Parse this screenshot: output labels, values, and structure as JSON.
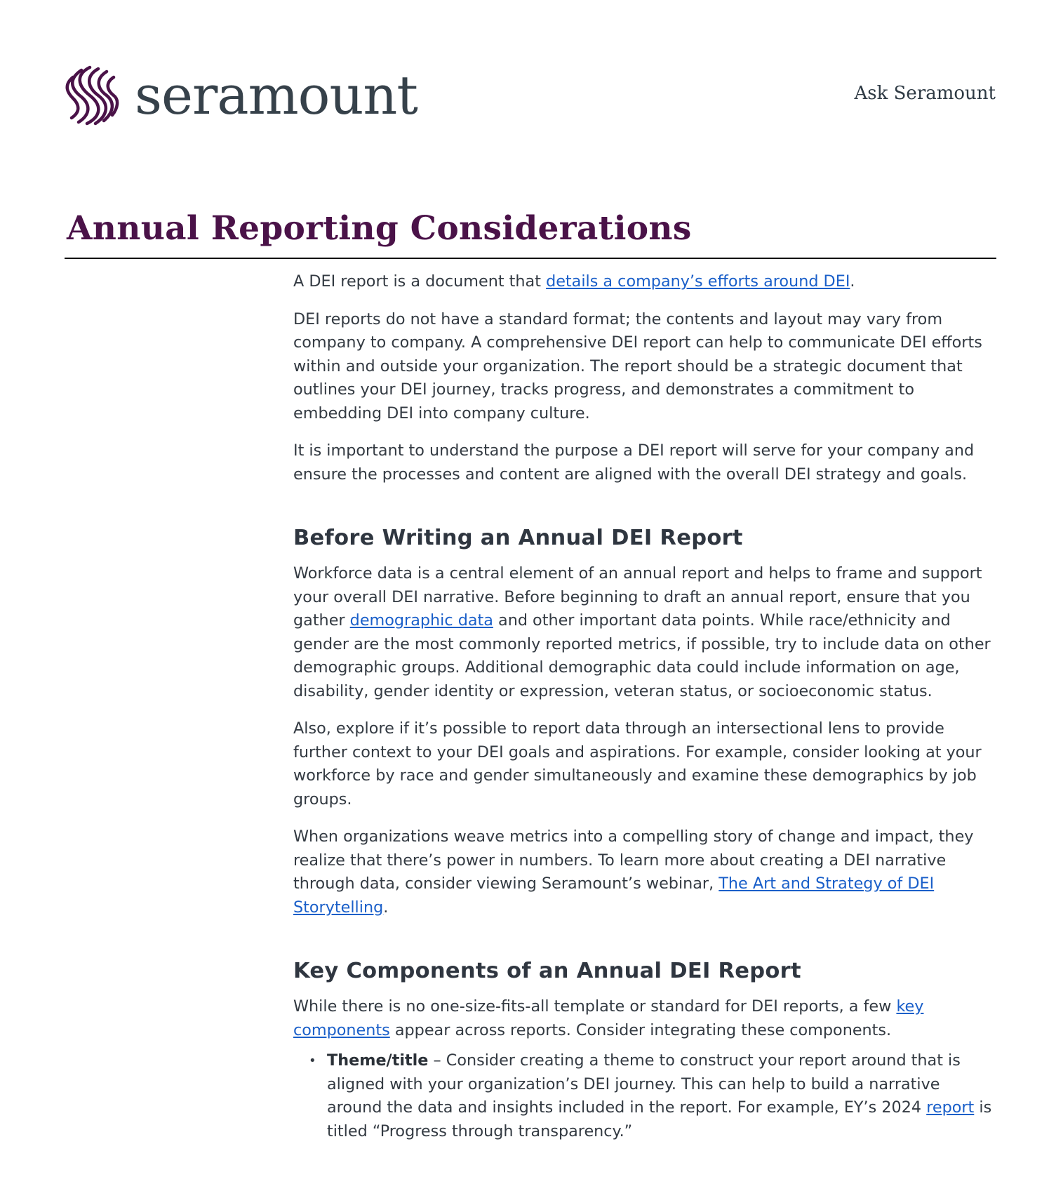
{
  "header": {
    "logo_text": "seramount",
    "brand_color": "#4a1248",
    "ask_link": "Ask Seramount"
  },
  "page_title": "Annual Reporting Considerations",
  "intro": {
    "p1_before": "A DEI report is a document that ",
    "p1_link": "details a company’s efforts around DEI",
    "p1_after": ".",
    "p2": "DEI reports do not have a standard format; the contents and layout may vary from company to company. A comprehensive DEI report can help to communicate DEI efforts within and outside your organization. The report should be a strategic document that outlines your DEI journey, tracks progress, and demonstrates a commitment to embedding DEI into company culture.",
    "p3": "It is important to understand the purpose a DEI report will serve for your company and ensure the processes and content are aligned with the overall DEI strategy and goals."
  },
  "section1": {
    "heading": "Before Writing an Annual DEI Report",
    "p1_before": "Workforce data is a central element of an annual report and helps to frame and support your overall DEI narrative. Before beginning to draft an annual report, ensure that you gather ",
    "p1_link": "demographic data",
    "p1_after": " and other important data points. While race/ethnicity and gender are the most commonly reported metrics, if possible, try to include data on other demographic groups. Additional demographic data could include information on age, disability, gender identity or expression, veteran status, or socioeconomic status.",
    "p2": "Also, explore if it’s possible to report data through an intersectional lens to provide further context to your DEI goals and aspirations. For example, consider looking at your workforce by race and gender simultaneously and examine these demographics by job groups.",
    "p3_before": "When organizations weave metrics into a compelling story of change and impact, they realize that there’s power in numbers. To learn more about creating a DEI narrative through data, consider viewing Seramount’s webinar, ",
    "p3_link": "The Art and Strategy of DEI Storytelling",
    "p3_after": "."
  },
  "section2": {
    "heading": "Key Components of an Annual DEI Report",
    "p1_before": "While there is no one-size-fits-all template or standard for DEI reports, a few ",
    "p1_link": "key components",
    "p1_after": " appear across reports. Consider integrating these components.",
    "bullets": [
      {
        "term": "Theme/title",
        "text": " – Consider creating a theme to construct your report around that is aligned with your organization’s DEI journey. This can help to build a narrative around the data and insights included in the report. For example, EY’s 2024 ",
        "link": "report",
        "after": " is titled “Progress through transparency.”"
      }
    ]
  }
}
